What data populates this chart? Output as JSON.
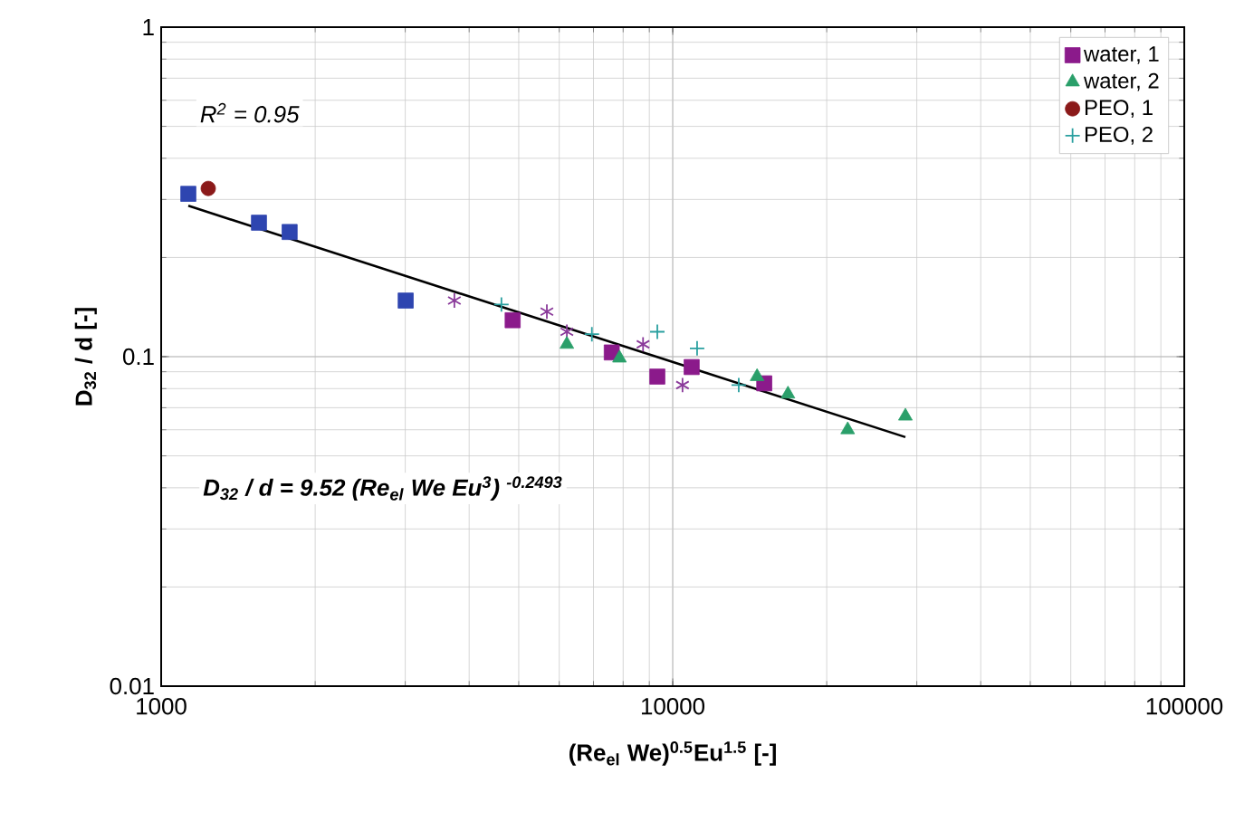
{
  "chart_data": {
    "type": "scatter",
    "xlabel": "(Re$_{el}$ We)$^{0.5}$Eu$^{1.5}$ [-]",
    "ylabel": "D$_{32}$ / d  [-]",
    "log": "xy",
    "grid": true,
    "legend": "top right",
    "xlim": [
      1000,
      100000
    ],
    "ylim": [
      0.01,
      1
    ],
    "xticks": [
      1000,
      10000,
      100000
    ],
    "yticks": [
      0.01,
      0.1,
      1
    ],
    "annotations": [
      "R$^{2}$ = 0.95",
      "D$_{32}$ / d = 9.52 (Re$_{el}$ We Eu$^{3}$) $^{-0.2493}$"
    ],
    "series": [
      {
        "color": "#2e45b0",
        "marker": "square",
        "x": [
          1130,
          1553,
          1783,
          3006
        ],
        "values": [
          0.312,
          0.255,
          0.239,
          0.148
        ]
      },
      {
        "color": "#8a3a9a",
        "marker": "cross",
        "x": [
          3743,
          5675,
          6210,
          8750,
          10450
        ],
        "values": [
          0.148,
          0.137,
          0.119,
          0.109,
          0.082
        ]
      },
      {
        "name": "water, 1",
        "color": "#8b1a8b",
        "marker": "square",
        "x": [
          4865,
          7600,
          9330,
          10890,
          15100
        ],
        "values": [
          0.129,
          0.103,
          0.087,
          0.093,
          0.083
        ]
      },
      {
        "name": "water, 2",
        "color": "#2a9f6a",
        "marker": "triangle",
        "x": [
          6210,
          7870,
          14620,
          16800,
          21980,
          28500
        ],
        "values": [
          0.109,
          0.099,
          0.087,
          0.077,
          0.06,
          0.066
        ]
      },
      {
        "name": "PEO, 1",
        "color": "#8b1a1a",
        "marker": "circle",
        "x": [
          1236
        ],
        "values": [
          0.324
        ]
      },
      {
        "name": "PEO, 2",
        "color": "#2aa0a0",
        "marker": "cross",
        "x": [
          4625,
          6950,
          9330,
          11160,
          13460
        ],
        "values": [
          0.144,
          0.117,
          0.119,
          0.106,
          0.082
        ]
      },
      {
        "type": "line",
        "color": "#000000",
        "marker": "none",
        "line_style": "solid",
        "x": [
          1130,
          28500
        ],
        "values": [
          0.287,
          0.057
        ]
      }
    ]
  }
}
